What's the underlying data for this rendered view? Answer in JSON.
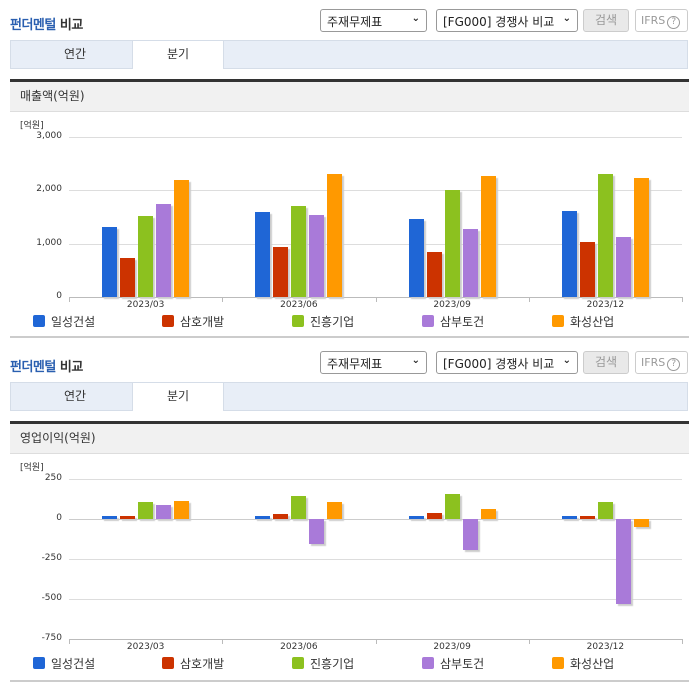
{
  "sections": [
    {
      "title_highlight": "펀더멘털",
      "title_rest": " 비교",
      "select_statement": "주재무제표",
      "select_compare": "[FG000] 경쟁사 비교",
      "search_label": "검색",
      "ifrs_label": "IFRS",
      "help_icon": "?",
      "tabs": [
        {
          "label": "연간"
        },
        {
          "label": "분기",
          "active": true
        }
      ],
      "panel_title": "매출액(억원)"
    },
    {
      "title_highlight": "펀더멘털",
      "title_rest": " 비교",
      "select_statement": "주재무제표",
      "select_compare": "[FG000] 경쟁사 비교",
      "search_label": "검색",
      "ifrs_label": "IFRS",
      "help_icon": "?",
      "tabs": [
        {
          "label": "연간"
        },
        {
          "label": "분기",
          "active": true
        }
      ],
      "panel_title": "영업이익(억원)"
    }
  ],
  "colors": {
    "일성건설": "#1f66d6",
    "삼호개발": "#cc3300",
    "진흥기업": "#8cc11f",
    "삼부토건": "#a97ad9",
    "화성산업": "#ff9900"
  },
  "chart_data": [
    {
      "type": "bar",
      "title": "매출액(억원)",
      "unit_label": "[억원]",
      "xlabel": "",
      "ylabel": "억원",
      "ylim": [
        0,
        3000
      ],
      "yticks": [
        "3,000",
        "2,000",
        "1,000",
        "0"
      ],
      "grid": true,
      "legend_position": "bottom",
      "categories": [
        "2023/03",
        "2023/06",
        "2023/09",
        "2023/12"
      ],
      "series": [
        {
          "name": "일성건설",
          "color": "#1f66d6",
          "values": [
            1310,
            1595,
            1465,
            1615
          ]
        },
        {
          "name": "삼호개발",
          "color": "#cc3300",
          "values": [
            730,
            940,
            845,
            1035
          ]
        },
        {
          "name": "진흥기업",
          "color": "#8cc11f",
          "values": [
            1520,
            1710,
            2005,
            2300
          ]
        },
        {
          "name": "삼부토건",
          "color": "#a97ad9",
          "values": [
            1745,
            1540,
            1275,
            1130
          ]
        },
        {
          "name": "화성산업",
          "color": "#ff9900",
          "values": [
            2195,
            2300,
            2270,
            2235
          ]
        }
      ]
    },
    {
      "type": "bar",
      "title": "영업이익(억원)",
      "unit_label": "[억원]",
      "xlabel": "",
      "ylabel": "억원",
      "ylim": [
        -750,
        250
      ],
      "yticks": [
        "250",
        "0",
        "-250",
        "-500",
        "-750"
      ],
      "grid": true,
      "legend_position": "bottom",
      "categories": [
        "2023/03",
        "2023/06",
        "2023/09",
        "2023/12"
      ],
      "series": [
        {
          "name": "일성건설",
          "color": "#1f66d6",
          "values": [
            15,
            20,
            8,
            8
          ]
        },
        {
          "name": "삼호개발",
          "color": "#cc3300",
          "values": [
            10,
            33,
            40,
            8
          ]
        },
        {
          "name": "진흥기업",
          "color": "#8cc11f",
          "values": [
            105,
            142,
            155,
            105
          ]
        },
        {
          "name": "삼부토건",
          "color": "#a97ad9",
          "values": [
            85,
            -155,
            -195,
            -530
          ]
        },
        {
          "name": "화성산업",
          "color": "#ff9900",
          "values": [
            115,
            107,
            65,
            -50
          ]
        }
      ]
    }
  ]
}
